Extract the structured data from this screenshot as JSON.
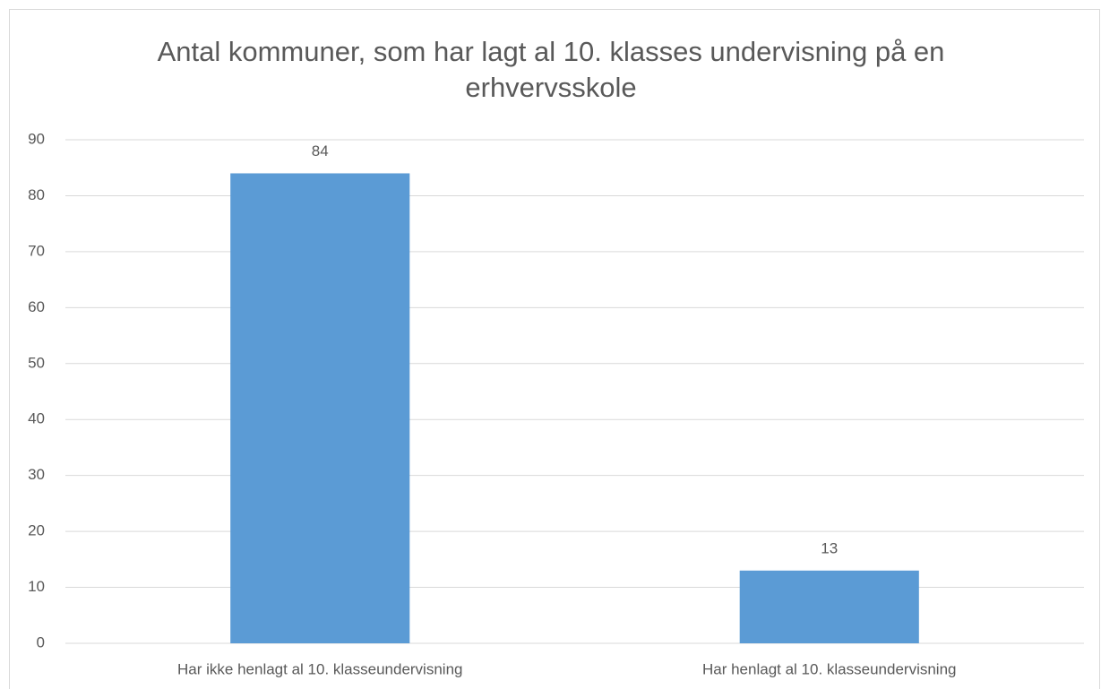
{
  "chart_data": {
    "type": "bar",
    "title": "Antal kommuner, som har lagt al 10. klasses undervisning på en erhvervsskole",
    "categories": [
      "Har ikke henlagt al 10. klasseundervisning",
      "Har henlagt al 10. klasseundervisning"
    ],
    "values": [
      84,
      13
    ],
    "color": "#5b9bd5",
    "ylim": [
      0,
      90
    ],
    "yticks": [
      0,
      10,
      20,
      30,
      40,
      50,
      60,
      70,
      80,
      90
    ],
    "grid": true
  }
}
